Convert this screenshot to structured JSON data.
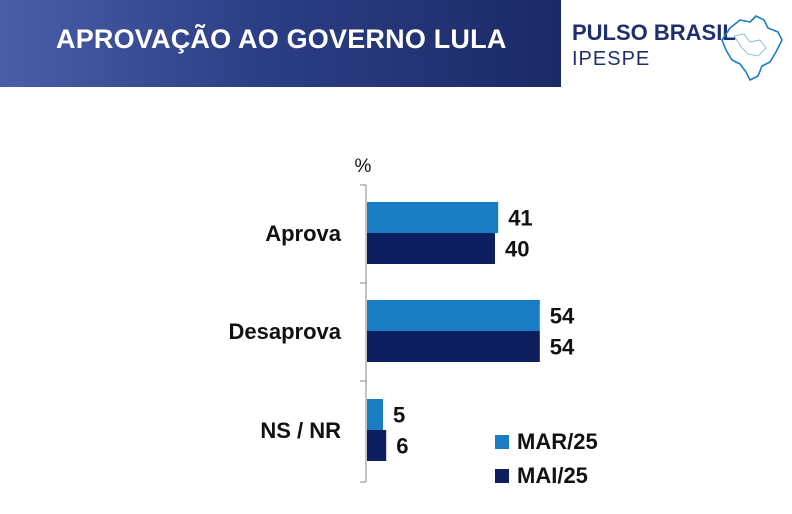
{
  "header": {
    "title": "APROVAÇÃO AO GOVERNO LULA"
  },
  "logo": {
    "line1": "PULSO BRASIL",
    "line2": "IPESPE",
    "icon": "brazil-map-icon"
  },
  "colors": {
    "mar25": "#1a7dc4",
    "mai25": "#0d1f5f",
    "header": "#2c3f86"
  },
  "chart_data": {
    "type": "bar",
    "orientation": "horizontal",
    "unit": "%",
    "categories": [
      "Aprova",
      "Desaprova",
      "NS / NR"
    ],
    "series": [
      {
        "name": "MAR/25",
        "values": [
          41,
          54,
          5
        ]
      },
      {
        "name": "MAI/25",
        "values": [
          40,
          54,
          6
        ]
      }
    ],
    "xlim": [
      0,
      100
    ],
    "legend_position": "bottom-right",
    "grid": false
  }
}
